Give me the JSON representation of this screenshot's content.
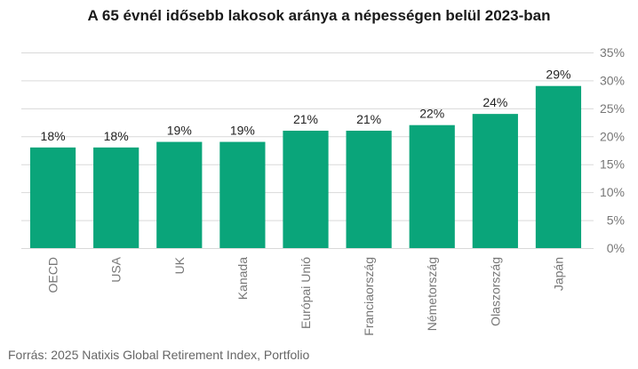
{
  "chart_data": {
    "type": "bar",
    "title": "A 65 évnél idősebb lakosok aránya a népességen belül 2023-ban",
    "categories": [
      "OECD",
      "USA",
      "UK",
      "Kanada",
      "Európai Unió",
      "Franciaország",
      "Németország",
      "Olaszország",
      "Japán"
    ],
    "values": [
      18,
      18,
      19,
      19,
      21,
      21,
      22,
      24,
      29
    ],
    "data_labels": [
      "18%",
      "18%",
      "19%",
      "19%",
      "21%",
      "21%",
      "22%",
      "24%",
      "29%"
    ],
    "y_ticks": [
      0,
      5,
      10,
      15,
      20,
      25,
      30,
      35
    ],
    "y_tick_labels": [
      "0%",
      "5%",
      "10%",
      "15%",
      "20%",
      "25%",
      "30%",
      "35%"
    ],
    "ylim": [
      0,
      35
    ],
    "y_axis_side": "right",
    "grid": true,
    "bar_color": "#0aa57a",
    "source": "Forrás: 2025 Natixis Global Retirement Index, Portfolio"
  }
}
